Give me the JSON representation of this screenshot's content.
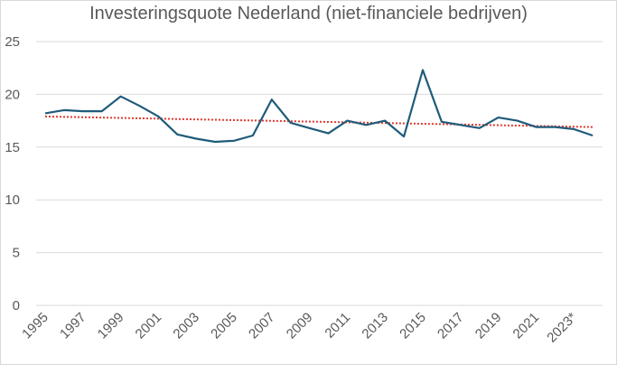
{
  "chart_data": {
    "type": "line",
    "title": "Investeringsquote Nederland (niet-financiele bedrijven)",
    "xlabel": "",
    "ylabel": "",
    "ylim": [
      0,
      25
    ],
    "yticks": [
      0,
      5,
      10,
      15,
      20,
      25
    ],
    "grid": true,
    "legend": "none",
    "categories": [
      "1995",
      "1996",
      "1997",
      "1998",
      "1999",
      "2000",
      "2001",
      "2002",
      "2003",
      "2004",
      "2005",
      "2006",
      "2007",
      "2008",
      "2009",
      "2010",
      "2011",
      "2012",
      "2013",
      "2014",
      "2015",
      "2016",
      "2017",
      "2018",
      "2019",
      "2020",
      "2021",
      "2022",
      "2023*",
      "2024"
    ],
    "x_tick_labels": [
      "1995",
      "1997",
      "1999",
      "2001",
      "2003",
      "2005",
      "2007",
      "2009",
      "2011",
      "2013",
      "2015",
      "2017",
      "2019",
      "2021",
      "2023*"
    ],
    "series": [
      {
        "values": [
          18.2,
          18.5,
          18.4,
          18.4,
          19.8,
          18.9,
          17.9,
          16.2,
          15.8,
          15.5,
          15.6,
          16.1,
          19.5,
          17.3,
          16.8,
          16.3,
          17.5,
          17.1,
          17.5,
          16.0,
          22.3,
          17.4,
          17.1,
          16.8,
          17.8,
          17.5,
          16.9,
          16.9,
          16.7,
          16.1
        ],
        "color": "#1f5b7a",
        "style": "solid"
      }
    ],
    "trendline": {
      "type": "linear",
      "start": 17.9,
      "end": 16.9,
      "color": "#e03a2f",
      "style": "dotted"
    }
  }
}
